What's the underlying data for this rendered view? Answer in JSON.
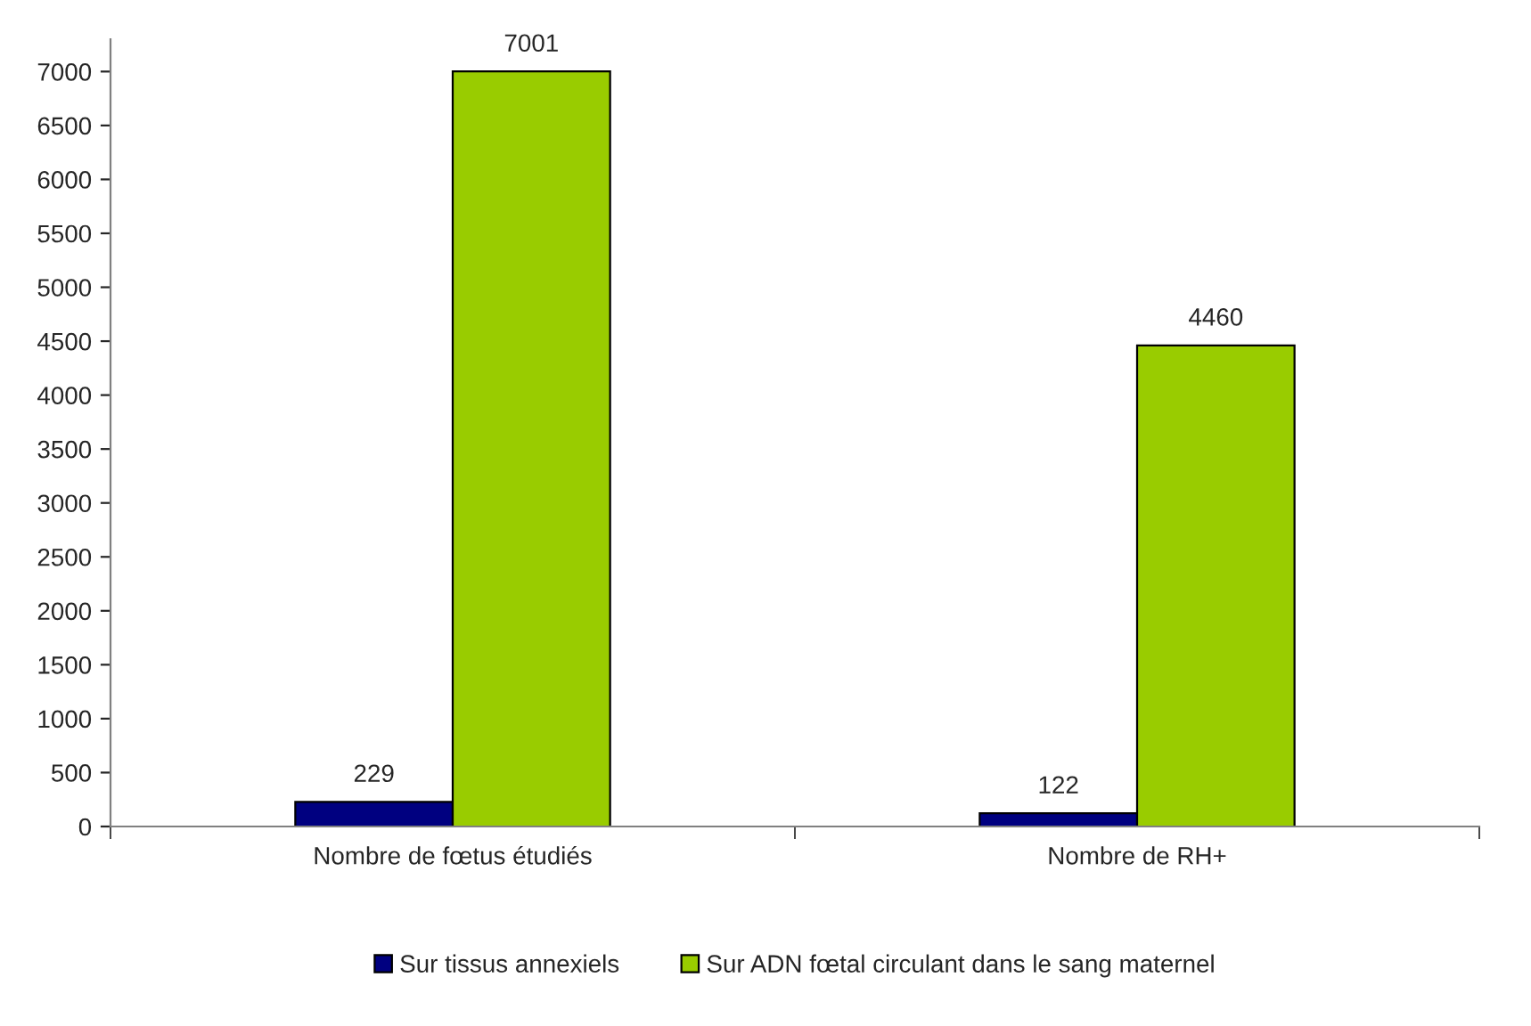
{
  "chart_data": {
    "type": "bar",
    "categories": [
      "Nombre de fœtus étudiés",
      "Nombre de RH+"
    ],
    "series": [
      {
        "name": "Sur tissus annexiels",
        "color": "#000080",
        "values": [
          229,
          122
        ]
      },
      {
        "name": "Sur ADN fœtal circulant dans le sang maternel",
        "color": "#99cc00",
        "values": [
          7001,
          4460
        ]
      }
    ],
    "ylim": [
      0,
      7300
    ],
    "yticks": [
      0,
      500,
      1000,
      1500,
      2000,
      2500,
      3000,
      3500,
      4000,
      4500,
      5000,
      5500,
      6000,
      6500,
      7000
    ],
    "data_labels": true,
    "grid": false,
    "legend": "bottom"
  }
}
